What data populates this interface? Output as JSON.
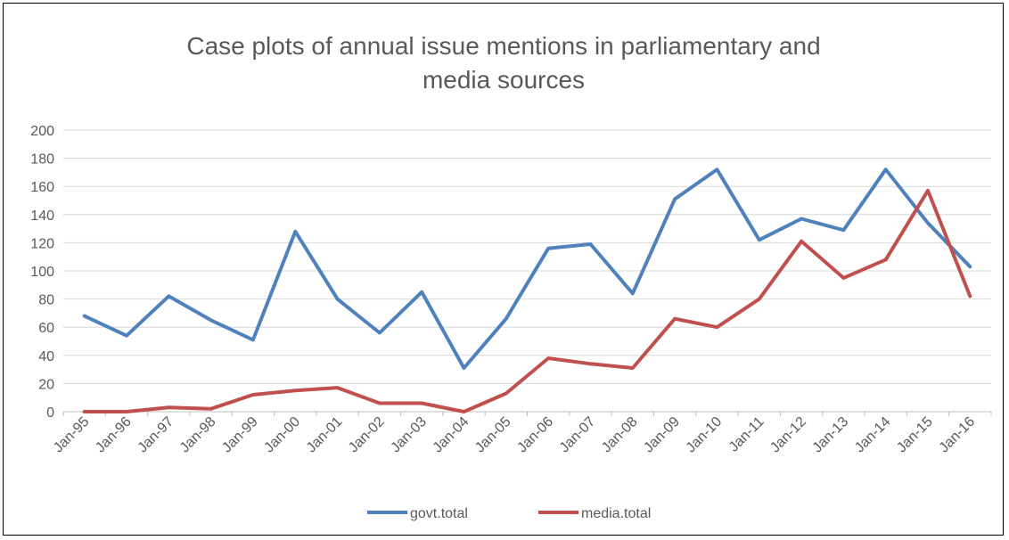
{
  "chart_data": {
    "type": "line",
    "title": [
      "Case plots of annual issue mentions in parliamentary and",
      "media sources"
    ],
    "xlabel": "",
    "ylabel": "",
    "ylim": [
      0,
      200
    ],
    "yticks": [
      "0",
      "20",
      "40",
      "60",
      "80",
      "100",
      "120",
      "140",
      "160",
      "180",
      "200"
    ],
    "grid": true,
    "legend_position": "bottom",
    "categories": [
      "Jan-95",
      "Jan-96",
      "Jan-97",
      "Jan-98",
      "Jan-99",
      "Jan-00",
      "Jan-01",
      "Jan-02",
      "Jan-03",
      "Jan-04",
      "Jan-05",
      "Jan-06",
      "Jan-07",
      "Jan-08",
      "Jan-09",
      "Jan-10",
      "Jan-11",
      "Jan-12",
      "Jan-13",
      "Jan-14",
      "Jan-15",
      "Jan-16"
    ],
    "series": [
      {
        "name": "govt.total",
        "color": "#4f81bd",
        "values": [
          68,
          54,
          82,
          65,
          51,
          128,
          80,
          56,
          85,
          31,
          66,
          116,
          119,
          84,
          151,
          172,
          122,
          137,
          129,
          172,
          134,
          103
        ]
      },
      {
        "name": "media.total",
        "color": "#c0504d",
        "values": [
          0,
          0,
          3,
          2,
          12,
          15,
          17,
          6,
          6,
          0,
          13,
          38,
          34,
          31,
          66,
          60,
          80,
          121,
          95,
          108,
          157,
          82
        ]
      }
    ]
  }
}
